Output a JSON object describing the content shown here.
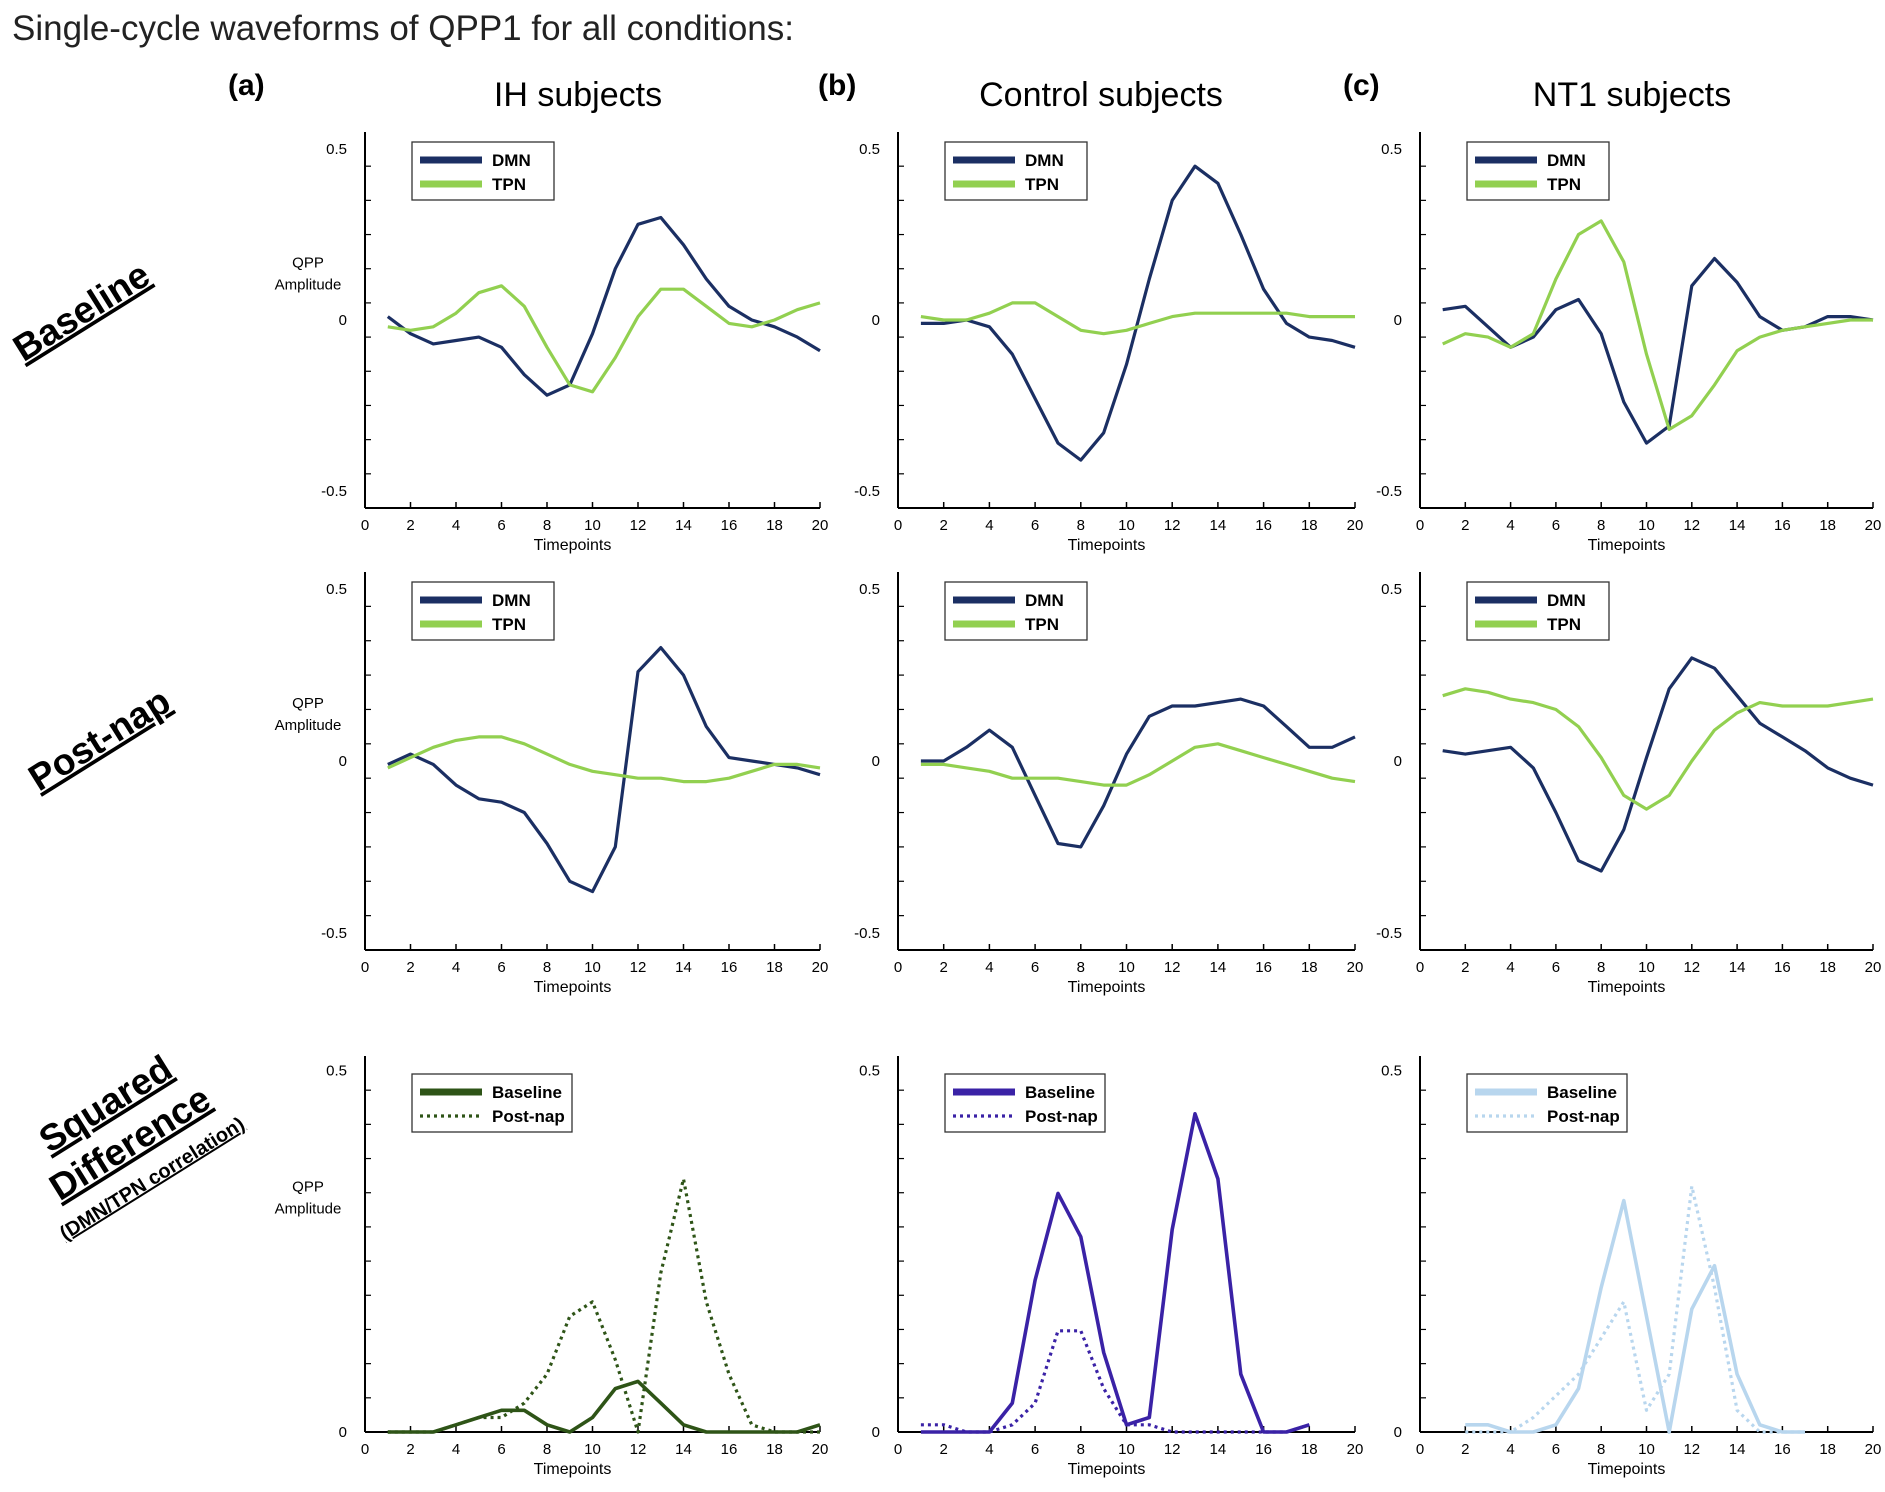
{
  "title": "Single-cycle waveforms of QPP1 for all conditions:",
  "columns": [
    {
      "letter": "(a)",
      "label": "IH subjects"
    },
    {
      "letter": "(b)",
      "label": "Control subjects"
    },
    {
      "letter": "(c)",
      "label": "NT1 subjects"
    }
  ],
  "rows": [
    {
      "label": "Baseline"
    },
    {
      "label": "Post-nap"
    },
    {
      "label": "Squared Difference",
      "label_lines": [
        "Squared",
        "Difference"
      ],
      "sublabel": "(DMN/TPN correlation)"
    }
  ],
  "axis": {
    "xlabel": "Timepoints",
    "ylabel_lines": [
      "QPP",
      "Amplitude"
    ],
    "xticks": [
      0,
      2,
      4,
      6,
      8,
      10,
      12,
      14,
      16,
      18,
      20
    ],
    "yticks_signed": [
      "0.5",
      "0",
      "-0.5"
    ],
    "yticks_sq": [
      "0.5",
      "0"
    ]
  },
  "colors": {
    "dmn": "#1b2f63",
    "tpn": "#92d050",
    "ih_sq": "#2e5417",
    "control_sq": "#3a22a6",
    "nt1_sq": "#b8d6ee",
    "axis": "#000000"
  },
  "chart_data": [
    {
      "type": "line",
      "panel": "IH Baseline",
      "xlim": [
        0,
        20
      ],
      "ylim": [
        -0.55,
        0.55
      ],
      "ylabel": "QPP Amplitude",
      "xlabel": "Timepoints",
      "legend": "top-left",
      "series": [
        {
          "name": "DMN",
          "x": [
            1,
            2,
            3,
            4,
            5,
            6,
            7,
            8,
            9,
            10,
            11,
            12,
            13,
            14,
            15,
            16,
            17,
            18,
            19,
            20
          ],
          "y": [
            0.01,
            -0.04,
            -0.07,
            -0.06,
            -0.05,
            -0.08,
            -0.16,
            -0.22,
            -0.19,
            -0.04,
            0.15,
            0.28,
            0.3,
            0.22,
            0.12,
            0.04,
            0.0,
            -0.02,
            -0.05,
            -0.09
          ]
        },
        {
          "name": "TPN",
          "x": [
            1,
            2,
            3,
            4,
            5,
            6,
            7,
            8,
            9,
            10,
            11,
            12,
            13,
            14,
            15,
            16,
            17,
            18,
            19,
            20
          ],
          "y": [
            -0.02,
            -0.03,
            -0.02,
            0.02,
            0.08,
            0.1,
            0.04,
            -0.08,
            -0.19,
            -0.21,
            -0.11,
            0.01,
            0.09,
            0.09,
            0.04,
            -0.01,
            -0.02,
            0.0,
            0.03,
            0.05
          ]
        }
      ]
    },
    {
      "type": "line",
      "panel": "Control Baseline",
      "xlim": [
        0,
        20
      ],
      "ylim": [
        -0.55,
        0.55
      ],
      "xlabel": "Timepoints",
      "legend": "top-left",
      "series": [
        {
          "name": "DMN",
          "x": [
            1,
            2,
            3,
            4,
            5,
            6,
            7,
            8,
            9,
            10,
            11,
            12,
            13,
            14,
            15,
            16,
            17,
            18,
            19,
            20
          ],
          "y": [
            -0.01,
            -0.01,
            0.0,
            -0.02,
            -0.1,
            -0.23,
            -0.36,
            -0.41,
            -0.33,
            -0.13,
            0.12,
            0.35,
            0.45,
            0.4,
            0.25,
            0.09,
            -0.01,
            -0.05,
            -0.06,
            -0.08
          ]
        },
        {
          "name": "TPN",
          "x": [
            1,
            2,
            3,
            4,
            5,
            6,
            7,
            8,
            9,
            10,
            11,
            12,
            13,
            14,
            15,
            16,
            17,
            18,
            19,
            20
          ],
          "y": [
            0.01,
            0.0,
            0.0,
            0.02,
            0.05,
            0.05,
            0.01,
            -0.03,
            -0.04,
            -0.03,
            -0.01,
            0.01,
            0.02,
            0.02,
            0.02,
            0.02,
            0.02,
            0.01,
            0.01,
            0.01
          ]
        }
      ]
    },
    {
      "type": "line",
      "panel": "NT1 Baseline",
      "xlim": [
        0,
        20
      ],
      "ylim": [
        -0.55,
        0.55
      ],
      "xlabel": "Timepoints",
      "legend": "top-left",
      "series": [
        {
          "name": "DMN",
          "x": [
            1,
            2,
            3,
            4,
            5,
            6,
            7,
            8,
            9,
            10,
            11,
            12,
            13,
            14,
            15,
            16,
            17,
            18,
            19,
            20
          ],
          "y": [
            0.03,
            0.04,
            -0.02,
            -0.08,
            -0.05,
            0.03,
            0.06,
            -0.04,
            -0.24,
            -0.36,
            -0.31,
            0.1,
            0.18,
            0.11,
            0.01,
            -0.03,
            -0.02,
            0.01,
            0.01,
            0.0
          ]
        },
        {
          "name": "TPN",
          "x": [
            1,
            2,
            3,
            4,
            5,
            6,
            7,
            8,
            9,
            10,
            11,
            12,
            13,
            14,
            15,
            16,
            17,
            18,
            19,
            20
          ],
          "y": [
            -0.07,
            -0.04,
            -0.05,
            -0.08,
            -0.04,
            0.12,
            0.25,
            0.29,
            0.17,
            -0.1,
            -0.32,
            -0.28,
            -0.19,
            -0.09,
            -0.05,
            -0.03,
            -0.02,
            -0.01,
            0.0,
            0.0
          ]
        }
      ]
    },
    {
      "type": "line",
      "panel": "IH Post-nap",
      "xlim": [
        0,
        20
      ],
      "ylim": [
        -0.55,
        0.55
      ],
      "ylabel": "QPP Amplitude",
      "xlabel": "Timepoints",
      "legend": "top-left",
      "series": [
        {
          "name": "DMN",
          "x": [
            1,
            2,
            3,
            4,
            5,
            6,
            7,
            8,
            9,
            10,
            11,
            12,
            13,
            14,
            15,
            16,
            17,
            18,
            19,
            20
          ],
          "y": [
            -0.01,
            0.02,
            -0.01,
            -0.07,
            -0.11,
            -0.12,
            -0.15,
            -0.24,
            -0.35,
            -0.38,
            -0.25,
            0.26,
            0.33,
            0.25,
            0.1,
            0.01,
            0.0,
            -0.01,
            -0.02,
            -0.04
          ]
        },
        {
          "name": "TPN",
          "x": [
            1,
            2,
            3,
            4,
            5,
            6,
            7,
            8,
            9,
            10,
            11,
            12,
            13,
            14,
            15,
            16,
            17,
            18,
            19,
            20
          ],
          "y": [
            -0.02,
            0.01,
            0.04,
            0.06,
            0.07,
            0.07,
            0.05,
            0.02,
            -0.01,
            -0.03,
            -0.04,
            -0.05,
            -0.05,
            -0.06,
            -0.06,
            -0.05,
            -0.03,
            -0.01,
            -0.01,
            -0.02
          ]
        }
      ]
    },
    {
      "type": "line",
      "panel": "Control Post-nap",
      "xlim": [
        0,
        20
      ],
      "ylim": [
        -0.55,
        0.55
      ],
      "xlabel": "Timepoints",
      "legend": "top-left",
      "series": [
        {
          "name": "DMN",
          "x": [
            1,
            2,
            3,
            4,
            5,
            6,
            7,
            8,
            9,
            10,
            11,
            12,
            13,
            14,
            15,
            16,
            17,
            18,
            19,
            20
          ],
          "y": [
            0.0,
            0.0,
            0.04,
            0.09,
            0.04,
            -0.1,
            -0.24,
            -0.25,
            -0.13,
            0.02,
            0.13,
            0.16,
            0.16,
            0.17,
            0.18,
            0.16,
            0.1,
            0.04,
            0.04,
            0.07
          ]
        },
        {
          "name": "TPN",
          "x": [
            1,
            2,
            3,
            4,
            5,
            6,
            7,
            8,
            9,
            10,
            11,
            12,
            13,
            14,
            15,
            16,
            17,
            18,
            19,
            20
          ],
          "y": [
            -0.01,
            -0.01,
            -0.02,
            -0.03,
            -0.05,
            -0.05,
            -0.05,
            -0.06,
            -0.07,
            -0.07,
            -0.04,
            0.0,
            0.04,
            0.05,
            0.03,
            0.01,
            -0.01,
            -0.03,
            -0.05,
            -0.06
          ]
        }
      ]
    },
    {
      "type": "line",
      "panel": "NT1 Post-nap",
      "xlim": [
        0,
        20
      ],
      "ylim": [
        -0.55,
        0.55
      ],
      "xlabel": "Timepoints",
      "legend": "top-left",
      "series": [
        {
          "name": "DMN",
          "x": [
            1,
            2,
            3,
            4,
            5,
            6,
            7,
            8,
            9,
            10,
            11,
            12,
            13,
            14,
            15,
            16,
            17,
            18,
            19,
            20
          ],
          "y": [
            0.03,
            0.02,
            0.03,
            0.04,
            -0.02,
            -0.15,
            -0.29,
            -0.32,
            -0.2,
            0.01,
            0.21,
            0.3,
            0.27,
            0.19,
            0.11,
            0.07,
            0.03,
            -0.02,
            -0.05,
            -0.07
          ]
        },
        {
          "name": "TPN",
          "x": [
            1,
            2,
            3,
            4,
            5,
            6,
            7,
            8,
            9,
            10,
            11,
            12,
            13,
            14,
            15,
            16,
            17,
            18,
            19,
            20
          ],
          "y": [
            0.19,
            0.21,
            0.2,
            0.18,
            0.17,
            0.15,
            0.1,
            0.01,
            -0.1,
            -0.14,
            -0.1,
            0.0,
            0.09,
            0.14,
            0.17,
            0.16,
            0.16,
            0.16,
            0.17,
            0.18
          ]
        }
      ]
    },
    {
      "type": "line",
      "panel": "IH Squared Difference",
      "xlim": [
        0,
        20
      ],
      "ylim": [
        0,
        0.52
      ],
      "ylabel": "QPP Amplitude",
      "xlabel": "Timepoints",
      "legend": "top-left",
      "series": [
        {
          "name": "Baseline",
          "x": [
            1,
            2,
            3,
            4,
            5,
            6,
            7,
            8,
            9,
            10,
            11,
            12,
            13,
            14,
            15,
            16,
            17,
            18,
            19,
            20
          ],
          "y": [
            0,
            0,
            0,
            0.01,
            0.02,
            0.03,
            0.03,
            0.01,
            0,
            0.02,
            0.06,
            0.07,
            0.04,
            0.01,
            0,
            0,
            0,
            0,
            0,
            0.01
          ]
        },
        {
          "name": "Post-nap",
          "x": [
            1,
            2,
            3,
            4,
            5,
            6,
            7,
            8,
            9,
            10,
            11,
            12,
            13,
            14,
            15,
            16,
            17,
            18,
            19,
            20
          ],
          "y": [
            0,
            0,
            0,
            0.01,
            0.02,
            0.02,
            0.04,
            0.08,
            0.16,
            0.18,
            0.1,
            0,
            0.22,
            0.35,
            0.18,
            0.08,
            0.01,
            0,
            0,
            0
          ]
        }
      ]
    },
    {
      "type": "line",
      "panel": "Control Squared Difference",
      "xlim": [
        0,
        20
      ],
      "ylim": [
        0,
        0.52
      ],
      "xlabel": "Timepoints",
      "legend": "top-left",
      "series": [
        {
          "name": "Baseline",
          "x": [
            1,
            2,
            3,
            4,
            5,
            6,
            7,
            8,
            9,
            10,
            11,
            12,
            13,
            14,
            15,
            16,
            17,
            18
          ],
          "y": [
            0,
            0,
            0,
            0,
            0.04,
            0.21,
            0.33,
            0.27,
            0.11,
            0.01,
            0.02,
            0.28,
            0.44,
            0.35,
            0.08,
            0,
            0,
            0.01
          ]
        },
        {
          "name": "Post-nap",
          "x": [
            1,
            2,
            3,
            4,
            5,
            6,
            7,
            8,
            9,
            10,
            11,
            12,
            13,
            14,
            15,
            16,
            17,
            18
          ],
          "y": [
            0.01,
            0.01,
            0,
            0,
            0.01,
            0.04,
            0.14,
            0.14,
            0.06,
            0.01,
            0.01,
            0,
            0,
            0,
            0,
            0,
            0,
            0.01
          ]
        }
      ]
    },
    {
      "type": "line",
      "panel": "NT1 Squared Difference",
      "xlim": [
        0,
        20
      ],
      "ylim": [
        0,
        0.52
      ],
      "xlabel": "Timepoints",
      "legend": "top-left",
      "series": [
        {
          "name": "Baseline",
          "x": [
            2,
            3,
            4,
            5,
            6,
            7,
            8,
            9,
            10,
            11,
            12,
            13,
            14,
            15,
            16,
            17
          ],
          "y": [
            0.01,
            0.01,
            0,
            0,
            0.01,
            0.06,
            0.2,
            0.32,
            0.16,
            0,
            0.17,
            0.23,
            0.08,
            0.01,
            0,
            0
          ]
        },
        {
          "name": "Post-nap",
          "x": [
            2,
            3,
            4,
            5,
            6,
            7,
            8,
            9,
            10,
            11,
            12,
            13,
            14,
            15,
            16,
            17
          ],
          "y": [
            0,
            0,
            0,
            0.02,
            0.05,
            0.08,
            0.13,
            0.18,
            0.03,
            0.08,
            0.34,
            0.2,
            0.03,
            0,
            0,
            0
          ]
        }
      ]
    }
  ]
}
